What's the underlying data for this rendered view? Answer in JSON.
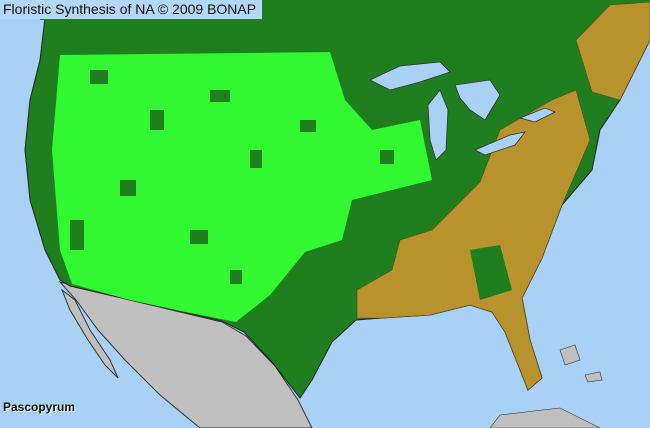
{
  "title": "Floristic Synthesis of NA © 2009 BONAP",
  "taxon_label": "Pascopyrum",
  "colors": {
    "water": "#a9d0f5",
    "present_native": "#1f7f1f",
    "present_widespread": "#33ff33",
    "not_present_exotic": "#b8922c",
    "outside_area": "#c0c0c0",
    "borders": "#2a2a2a"
  }
}
